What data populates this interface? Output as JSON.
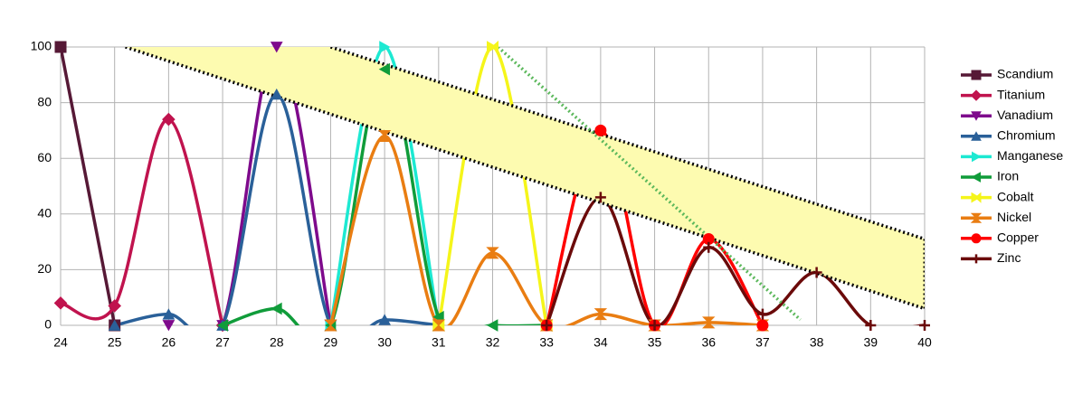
{
  "chart_data": {
    "type": "line",
    "x": [
      24,
      25,
      26,
      27,
      28,
      29,
      30,
      31,
      32,
      33,
      34,
      35,
      36,
      37,
      38,
      39,
      40
    ],
    "xlim": [
      24,
      40
    ],
    "xticks": [
      24,
      25,
      26,
      27,
      28,
      29,
      30,
      31,
      32,
      33,
      34,
      35,
      36,
      37,
      38,
      39,
      40
    ],
    "ylim": [
      0,
      100
    ],
    "yticks": [
      0,
      20,
      40,
      60,
      80,
      100
    ],
    "grid": true,
    "smooth": true,
    "legend": "right",
    "series": [
      {
        "name": "Scandium",
        "color": "#561936",
        "marker": "square",
        "values": [
          100,
          0,
          null,
          null,
          null,
          null,
          null,
          null,
          null,
          null,
          null,
          null,
          null,
          null,
          null,
          null,
          null
        ]
      },
      {
        "name": "Titanium",
        "color": "#c0134e",
        "marker": "diamond",
        "values": [
          8,
          7,
          74,
          0,
          null,
          null,
          null,
          null,
          null,
          null,
          null,
          null,
          null,
          null,
          null,
          null,
          null
        ]
      },
      {
        "name": "Vanadium",
        "color": "#7e0a8c",
        "marker": "triangle-down",
        "values": [
          null,
          null,
          0,
          0,
          100,
          0,
          null,
          null,
          null,
          null,
          null,
          null,
          null,
          null,
          null,
          null,
          null
        ]
      },
      {
        "name": "Chromium",
        "color": "#2a6099",
        "marker": "triangle-up",
        "values": [
          null,
          0,
          4,
          0,
          83,
          0,
          2,
          0,
          null,
          null,
          null,
          null,
          null,
          null,
          null,
          null,
          null
        ]
      },
      {
        "name": "Manganese",
        "color": "#1de9d2",
        "marker": "triangle-right",
        "values": [
          null,
          null,
          null,
          null,
          null,
          0,
          100,
          0,
          null,
          null,
          null,
          null,
          null,
          null,
          null,
          null,
          null
        ]
      },
      {
        "name": "Iron",
        "color": "#109c3a",
        "marker": "triangle-left",
        "values": [
          null,
          null,
          null,
          0,
          6,
          0,
          92,
          3,
          0,
          0,
          null,
          null,
          null,
          null,
          null,
          null,
          null
        ]
      },
      {
        "name": "Cobalt",
        "color": "#f5f51a",
        "marker": "arrow",
        "values": [
          null,
          null,
          null,
          null,
          null,
          null,
          null,
          0,
          100,
          0,
          null,
          null,
          null,
          null,
          null,
          null,
          null
        ]
      },
      {
        "name": "Nickel",
        "color": "#e97d12",
        "marker": "hourglass",
        "values": [
          null,
          null,
          null,
          null,
          null,
          0,
          68,
          0,
          26,
          0,
          4,
          0,
          1,
          0,
          null,
          null,
          null
        ]
      },
      {
        "name": "Copper",
        "color": "#ff0000",
        "marker": "circle",
        "values": [
          null,
          null,
          null,
          null,
          null,
          null,
          null,
          null,
          null,
          0,
          70,
          0,
          31,
          0,
          null,
          null,
          null
        ]
      },
      {
        "name": "Zinc",
        "color": "#6b0a0a",
        "marker": "plus",
        "values": [
          null,
          null,
          null,
          null,
          null,
          null,
          null,
          null,
          null,
          0,
          46,
          0,
          28,
          4,
          19,
          0,
          0
        ]
      }
    ],
    "band_color": "#fdfbb0",
    "trend_lines": [
      {
        "x": [
          25.2,
          40
        ],
        "y": [
          100,
          6
        ],
        "color": "#000000"
      },
      {
        "x": [
          29,
          40
        ],
        "y": [
          100,
          31
        ],
        "color": "#000000"
      },
      {
        "x": [
          32.1,
          37.7
        ],
        "y": [
          100,
          2
        ],
        "color": "#5cb85c"
      }
    ]
  }
}
